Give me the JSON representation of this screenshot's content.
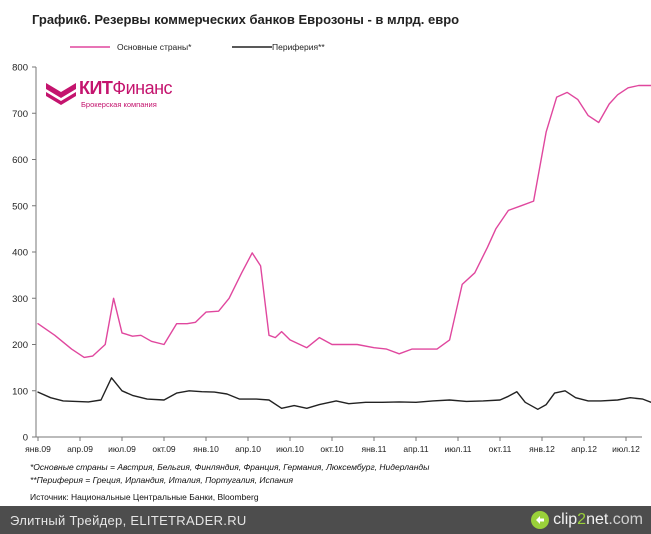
{
  "chart_data": {
    "type": "line",
    "title": "График6. Резервы коммерческих банков Еврозоны - в млрд. евро",
    "xlabel": "",
    "ylabel": "",
    "ylim": [
      0,
      800
    ],
    "yticks": [
      0,
      100,
      200,
      300,
      400,
      500,
      600,
      700,
      800
    ],
    "x_ticks": [
      "янв.09",
      "апр.09",
      "июл.09",
      "окт.09",
      "янв.10",
      "апр.10",
      "июл.10",
      "окт.10",
      "янв.11",
      "апр.11",
      "июл.11",
      "окт.11",
      "янв.12",
      "апр.12",
      "июл.12"
    ],
    "x_range": [
      0,
      14.6
    ],
    "legend_position": "top",
    "series": [
      {
        "name": "Основные страны*",
        "color": "#e0479e",
        "x": [
          0,
          0.4,
          0.8,
          1.1,
          1.3,
          1.6,
          1.8,
          2.0,
          2.25,
          2.45,
          2.7,
          3.0,
          3.3,
          3.55,
          3.75,
          4.0,
          4.3,
          4.55,
          4.85,
          5.1,
          5.3,
          5.5,
          5.65,
          5.8,
          6.0,
          6.4,
          6.7,
          7.0,
          7.3,
          7.6,
          8.0,
          8.3,
          8.6,
          8.9,
          9.2,
          9.5,
          9.8,
          10.1,
          10.4,
          10.7,
          10.9,
          11.2,
          11.5,
          11.8,
          12.1,
          12.35,
          12.6,
          12.85,
          13.1,
          13.35,
          13.6,
          13.8,
          14.05,
          14.3,
          14.6
        ],
        "values": [
          245,
          220,
          190,
          172,
          175,
          200,
          300,
          225,
          218,
          220,
          207,
          200,
          245,
          245,
          248,
          270,
          272,
          300,
          355,
          398,
          370,
          220,
          215,
          228,
          210,
          193,
          215,
          200,
          200,
          200,
          193,
          190,
          180,
          190,
          190,
          190,
          210,
          330,
          355,
          410,
          450,
          490,
          500,
          510,
          660,
          735,
          745,
          730,
          695,
          680,
          720,
          740,
          755,
          760,
          760
        ]
      },
      {
        "name": "Периферия**",
        "color": "#222222",
        "x": [
          0,
          0.3,
          0.6,
          0.9,
          1.2,
          1.5,
          1.75,
          2.0,
          2.25,
          2.6,
          3.0,
          3.3,
          3.6,
          3.9,
          4.2,
          4.5,
          4.8,
          5.2,
          5.5,
          5.8,
          6.1,
          6.4,
          6.7,
          7.1,
          7.4,
          7.8,
          8.2,
          8.6,
          9.0,
          9.4,
          9.8,
          10.2,
          10.6,
          11.0,
          11.2,
          11.4,
          11.6,
          11.9,
          12.1,
          12.3,
          12.55,
          12.8,
          13.1,
          13.4,
          13.8,
          14.1,
          14.4,
          14.6
        ],
        "values": [
          97,
          85,
          78,
          77,
          76,
          80,
          128,
          100,
          90,
          82,
          80,
          95,
          100,
          98,
          97,
          93,
          82,
          82,
          80,
          62,
          68,
          62,
          70,
          78,
          72,
          75,
          75,
          76,
          75,
          78,
          80,
          77,
          78,
          80,
          88,
          98,
          75,
          60,
          70,
          95,
          100,
          85,
          78,
          78,
          80,
          85,
          82,
          75
        ]
      }
    ]
  },
  "notes": {
    "line1": "*Основные страны  = Австрия, Бельгия, Финляндия, Франция, Германия, Люксембург, Нидерланды",
    "line2": "**Периферия  = Греция, Ирландия, Италия, Португалия, Испания",
    "source": "Источник: Национальные Центральные Банки, Bloomberg"
  },
  "logo": {
    "name_bold": "КИТ",
    "name_light": "Финанс",
    "subtitle": "Брокерская компания",
    "color": "#c4146e"
  },
  "footer": {
    "text": "Элитный Трейдер, ELITETRADER.RU",
    "logo_part1": "clip",
    "logo_part2": "2",
    "logo_part3": "net",
    "logo_part4": ".com"
  }
}
